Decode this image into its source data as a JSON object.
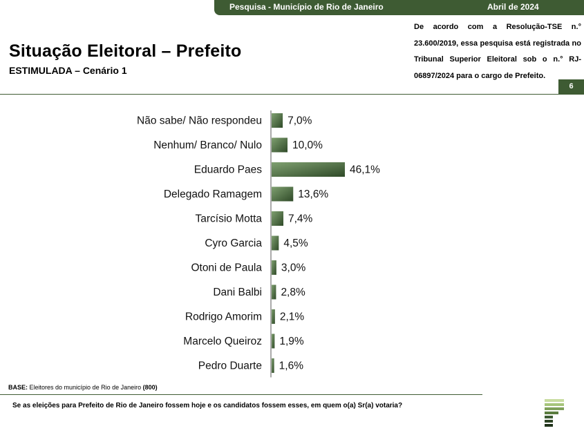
{
  "header": {
    "survey": "Pesquisa - Município de Rio de Janeiro",
    "date": "Abril de 2024",
    "title": "Situação Eleitoral – Prefeito",
    "subtitle": "ESTIMULADA – Cenário 1",
    "legal_note": "De acordo com a Resolução-TSE n.° 23.600/2019, essa pesquisa está registrada no Tribunal Superior Eleitoral sob o n.° RJ-06897/2024 para o cargo de Prefeito.",
    "page_number": "6"
  },
  "footer": {
    "base_label": "BASE:",
    "base_text": " Eleitores do município de Rio de Janeiro ",
    "base_count": "(800)",
    "question": "Se as eleições para Prefeito de Rio de Janeiro fossem hoje e os candidatos fossem esses, em quem o(a) Sr(a) votaria?"
  },
  "colors": {
    "accent": "#3e5b33",
    "bar_dark": "#2f4a28",
    "bar_light": "#7fa070"
  },
  "chart_data": {
    "type": "bar",
    "orientation": "horizontal",
    "categories": [
      "Não sabe/ Não respondeu",
      "Nenhum/ Branco/ Nulo",
      "Eduardo Paes",
      "Delegado Ramagem",
      "Tarcísio Motta",
      "Cyro Garcia",
      "Otoni de Paula",
      "Dani Balbi",
      "Rodrigo Amorim",
      "Marcelo Queiroz",
      "Pedro Duarte"
    ],
    "values": [
      7.0,
      10.0,
      46.1,
      13.6,
      7.4,
      4.5,
      3.0,
      2.8,
      2.1,
      1.9,
      1.6
    ],
    "value_labels": [
      "7,0%",
      "10,0%",
      "46,1%",
      "13,6%",
      "7,4%",
      "4,5%",
      "3,0%",
      "2,8%",
      "2,1%",
      "1,9%",
      "1,6%"
    ],
    "xlim": [
      0,
      50
    ],
    "grid": false,
    "legend": false
  }
}
